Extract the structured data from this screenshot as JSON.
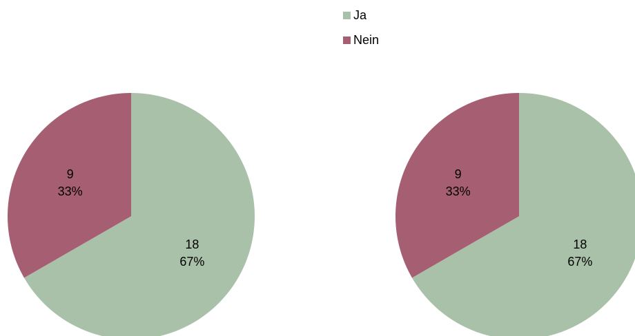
{
  "chart_data": {
    "type": "pie",
    "legend_position": "top",
    "legend": [
      {
        "label": "Ja",
        "color": "#a9c1a8"
      },
      {
        "label": "Nein",
        "color": "#a65e72"
      }
    ],
    "charts": [
      {
        "slices": [
          {
            "label": "Ja",
            "value": 18,
            "percent": "67%",
            "color": "#a9c1a8"
          },
          {
            "label": "Nein",
            "value": 9,
            "percent": "33%",
            "color": "#a65e72"
          }
        ]
      },
      {
        "slices": [
          {
            "label": "Ja",
            "value": 18,
            "percent": "67%",
            "color": "#a9c1a8"
          },
          {
            "label": "Nein",
            "value": 9,
            "percent": "33%",
            "color": "#a65e72"
          }
        ]
      }
    ]
  }
}
